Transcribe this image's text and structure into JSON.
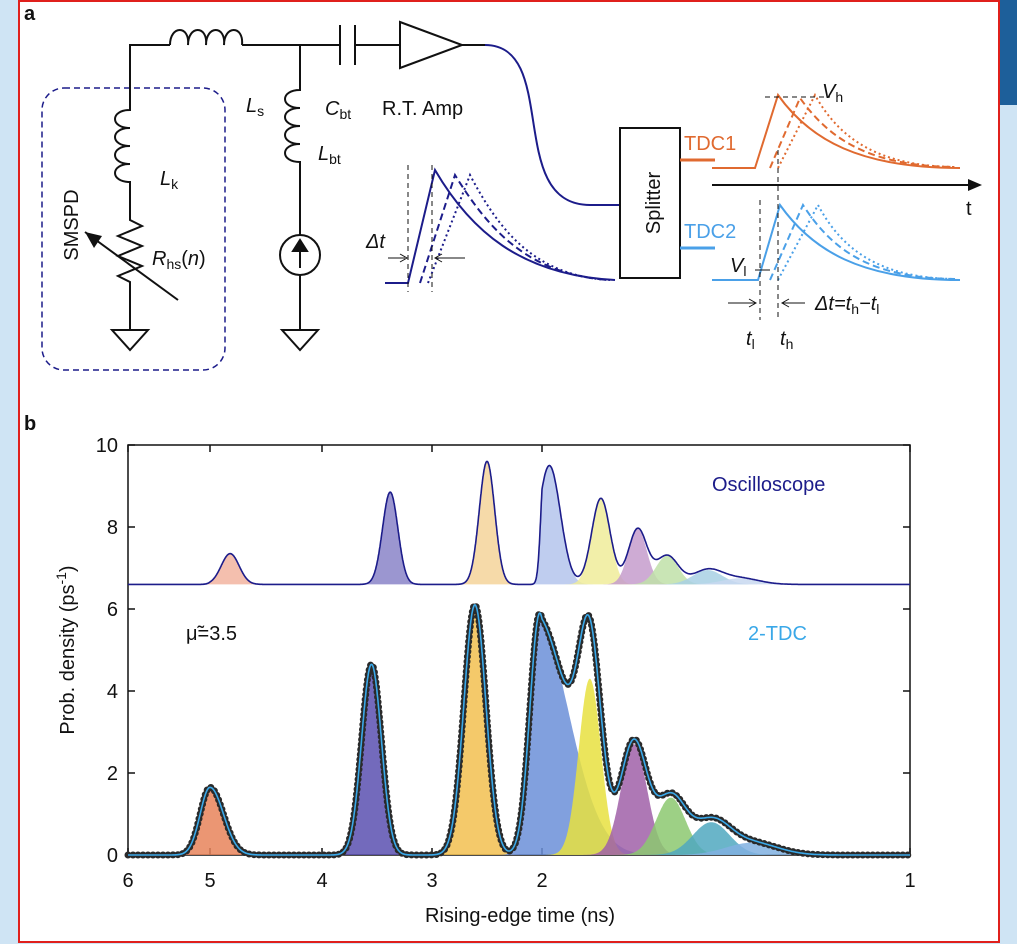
{
  "panel_a": {
    "label": "a",
    "smspd": "SMSPD",
    "Ls": {
      "main": "L",
      "sub": "s"
    },
    "Lk": {
      "main": "L",
      "sub": "k"
    },
    "Lbt": {
      "main": "L",
      "sub": "bt"
    },
    "Cbt": {
      "main": "C",
      "sub": "bt"
    },
    "amp": "R.T. Amp",
    "Rhs": {
      "main": "R",
      "sub": "hs",
      "open": "(",
      "arg": "n",
      "close": ")"
    },
    "delta_t": "Δt",
    "splitter": "Splitter",
    "tdc1": "TDC1",
    "tdc2": "TDC2",
    "Vh": {
      "main": "V",
      "sub": "h"
    },
    "Vl": {
      "main": "V",
      "sub": "l"
    },
    "time_axis": "t",
    "tl": {
      "main": "t",
      "sub": "l"
    },
    "th": {
      "main": "t",
      "sub": "h"
    },
    "eq": {
      "lhs": "Δt=t",
      "sub1": "h",
      "mid": "−t",
      "sub2": "l"
    }
  },
  "chart_data": {
    "type": "area",
    "panel_label": "b",
    "xlabel": "Rising-edge time (ns)",
    "ylabel": {
      "main": "Prob. density (ps",
      "sup": "-1",
      "end": ")"
    },
    "annotation": "μ̃=3.5",
    "xlim": [
      6,
      1
    ],
    "xticks": [
      6,
      5,
      4,
      3,
      2,
      1
    ],
    "ylim": [
      0,
      10
    ],
    "yticks": [
      0,
      2,
      4,
      6,
      8,
      10
    ],
    "series": [
      {
        "name": "Oscilloscope",
        "line_color": "#1c1c8a",
        "baseline": 6.6,
        "x": [
          4.82,
          3.38,
          2.5,
          1.98,
          1.84,
          1.74,
          1.66,
          1.55,
          1.46
        ],
        "values": [
          7.35,
          8.85,
          9.6,
          9.5,
          8.7,
          7.95,
          7.3,
          6.95,
          6.75
        ],
        "widths": [
          0.08,
          0.07,
          0.07,
          0.03,
          0.025,
          0.025,
          0.03,
          0.04,
          0.05
        ],
        "colors": [
          "#f2b4a0",
          "#8a84c8",
          "#f5d49a",
          "#b4c4ec",
          "#f0ec9a",
          "#c69ccc",
          "#bfe0a8",
          "#a8d0e4",
          "#c8d8f0"
        ]
      },
      {
        "name": "2-TDC",
        "line_color": "#3aa8e8",
        "marker_color": "#2a2a2a",
        "baseline": 0,
        "x": [
          5.0,
          3.55,
          2.61,
          2.02,
          1.87,
          1.75,
          1.65,
          1.54,
          1.43
        ],
        "values": [
          1.65,
          4.65,
          6.1,
          5.9,
          4.3,
          2.7,
          1.4,
          0.8,
          0.3
        ],
        "widths": [
          0.12,
          0.09,
          0.1,
          0.09,
          0.03,
          0.035,
          0.04,
          0.05,
          0.07
        ],
        "colors": [
          "#e8845a",
          "#5a50b0",
          "#f2c050",
          "#6b8fd8",
          "#e8e040",
          "#a060a8",
          "#8cc870",
          "#50a8c0",
          "#80b0e0"
        ]
      }
    ]
  }
}
